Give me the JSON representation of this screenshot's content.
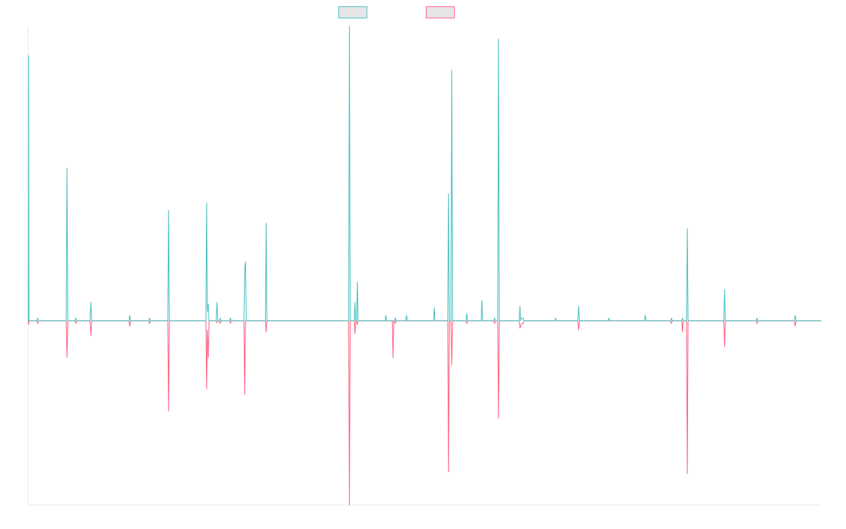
{
  "chart_data": {
    "type": "line",
    "title": "",
    "xlabel": "",
    "ylabel": "",
    "grid": false,
    "legend_position": "top-center",
    "x_range": [
      0,
      1000
    ],
    "ylim": [
      -100,
      160
    ],
    "series": [
      {
        "color": "#4bc0c0",
        "fill": "#e6e6e6",
        "points": [
          [
            0,
            0
          ],
          [
            0.5,
            144
          ],
          [
            1,
            0
          ],
          [
            11,
            0
          ],
          [
            12,
            1.5
          ],
          [
            13,
            0
          ],
          [
            48,
            0
          ],
          [
            49,
            83
          ],
          [
            50,
            0
          ],
          [
            59,
            0
          ],
          [
            60,
            1.5
          ],
          [
            61,
            0
          ],
          [
            78,
            0
          ],
          [
            79,
            10
          ],
          [
            80,
            0
          ],
          [
            127,
            0
          ],
          [
            128,
            3
          ],
          [
            129,
            0
          ],
          [
            152,
            0
          ],
          [
            153,
            1.5
          ],
          [
            154,
            0
          ],
          [
            176,
            0
          ],
          [
            177,
            60
          ],
          [
            178,
            0
          ],
          [
            224,
            0
          ],
          [
            225,
            64
          ],
          [
            226,
            5
          ],
          [
            227,
            9
          ],
          [
            228,
            0
          ],
          [
            237,
            0
          ],
          [
            238,
            10
          ],
          [
            239,
            0
          ],
          [
            241,
            0
          ],
          [
            242,
            1.5
          ],
          [
            243,
            0
          ],
          [
            254,
            0
          ],
          [
            255,
            1.5
          ],
          [
            256,
            0
          ],
          [
            272,
            0
          ],
          [
            273,
            29
          ],
          [
            274,
            32
          ],
          [
            275,
            0
          ],
          [
            299,
            0
          ],
          [
            300,
            53
          ],
          [
            301,
            0
          ],
          [
            404,
            0
          ],
          [
            405,
            160
          ],
          [
            406,
            0
          ],
          [
            411,
            0
          ],
          [
            412,
            10
          ],
          [
            413,
            0
          ],
          [
            414,
            0
          ],
          [
            415,
            21
          ],
          [
            416,
            0
          ],
          [
            450,
            0
          ],
          [
            451,
            3
          ],
          [
            452,
            0
          ],
          [
            462,
            0
          ],
          [
            463,
            1.5
          ],
          [
            464,
            0
          ],
          [
            476,
            0
          ],
          [
            477,
            3
          ],
          [
            478,
            0
          ],
          [
            511,
            0
          ],
          [
            512,
            7
          ],
          [
            513,
            0
          ],
          [
            529,
            0
          ],
          [
            530,
            69
          ],
          [
            531,
            0
          ],
          [
            533,
            0
          ],
          [
            534,
            136
          ],
          [
            535,
            0
          ],
          [
            552,
            0
          ],
          [
            553,
            4
          ],
          [
            554,
            0
          ],
          [
            571,
            0
          ],
          [
            572,
            11
          ],
          [
            573,
            0
          ],
          [
            587,
            0
          ],
          [
            588,
            1.5
          ],
          [
            589,
            0
          ],
          [
            592,
            0
          ],
          [
            593,
            153
          ],
          [
            594,
            0
          ],
          [
            619,
            0
          ],
          [
            620,
            8
          ],
          [
            621,
            0
          ],
          [
            622,
            1.5
          ],
          [
            624,
            1.5
          ],
          [
            625,
            0
          ],
          [
            664,
            0
          ],
          [
            665,
            1.5
          ],
          [
            666,
            0
          ],
          [
            693,
            0
          ],
          [
            694,
            8
          ],
          [
            695,
            0
          ],
          [
            731,
            0
          ],
          [
            732,
            1.5
          ],
          [
            733,
            0
          ],
          [
            777,
            0
          ],
          [
            778,
            3
          ],
          [
            779,
            0
          ],
          [
            810,
            0
          ],
          [
            811,
            1.5
          ],
          [
            812,
            0
          ],
          [
            824,
            0
          ],
          [
            825,
            1.5
          ],
          [
            826,
            0
          ],
          [
            830,
            0
          ],
          [
            831,
            50
          ],
          [
            832,
            0
          ],
          [
            877,
            0
          ],
          [
            878,
            17
          ],
          [
            879,
            0
          ],
          [
            918,
            0
          ],
          [
            919,
            1.5
          ],
          [
            920,
            0
          ],
          [
            966,
            0
          ],
          [
            967,
            3
          ],
          [
            968,
            0
          ],
          [
            1000,
            0
          ]
        ]
      },
      {
        "color": "#ff6384",
        "fill": "#e6e6e6",
        "points": [
          [
            0,
            0
          ],
          [
            0.5,
            -2
          ],
          [
            1,
            0
          ],
          [
            11,
            0
          ],
          [
            12,
            -1.5
          ],
          [
            13,
            0
          ],
          [
            48,
            0
          ],
          [
            49,
            -20
          ],
          [
            50,
            0
          ],
          [
            59,
            0
          ],
          [
            60,
            -1.5
          ],
          [
            61,
            0
          ],
          [
            78,
            0
          ],
          [
            79,
            -8
          ],
          [
            80,
            0
          ],
          [
            127,
            0
          ],
          [
            128,
            -3
          ],
          [
            129,
            0
          ],
          [
            152,
            0
          ],
          [
            153,
            -1.5
          ],
          [
            154,
            0
          ],
          [
            176,
            0
          ],
          [
            177,
            -49
          ],
          [
            178,
            0
          ],
          [
            224,
            0
          ],
          [
            225,
            -37
          ],
          [
            226,
            -5
          ],
          [
            227,
            -20
          ],
          [
            228,
            0
          ],
          [
            237,
            0
          ],
          [
            238,
            -1
          ],
          [
            239,
            0
          ],
          [
            241,
            0
          ],
          [
            242,
            -1.5
          ],
          [
            243,
            0
          ],
          [
            254,
            0
          ],
          [
            255,
            -1.5
          ],
          [
            256,
            0
          ],
          [
            272,
            0
          ],
          [
            273,
            -40
          ],
          [
            274,
            0
          ],
          [
            299,
            0
          ],
          [
            300,
            -6
          ],
          [
            301,
            0
          ],
          [
            404,
            0
          ],
          [
            405,
            -100
          ],
          [
            406,
            0
          ],
          [
            411,
            0
          ],
          [
            412,
            -7
          ],
          [
            413,
            0
          ],
          [
            414,
            0
          ],
          [
            415,
            -2
          ],
          [
            416,
            0
          ],
          [
            459,
            0
          ],
          [
            460,
            -20
          ],
          [
            461,
            0
          ],
          [
            462,
            0
          ],
          [
            463,
            -1.5
          ],
          [
            464,
            0
          ],
          [
            552,
            0
          ],
          [
            553,
            -1.5
          ],
          [
            554,
            0
          ],
          [
            529,
            0
          ],
          [
            530,
            -82
          ],
          [
            531,
            0
          ],
          [
            533,
            0
          ],
          [
            534,
            -24
          ],
          [
            535,
            0
          ],
          [
            587,
            0
          ],
          [
            588,
            -1.5
          ],
          [
            589,
            0
          ],
          [
            592,
            0
          ],
          [
            593,
            -53
          ],
          [
            594,
            0
          ],
          [
            619,
            0
          ],
          [
            620,
            -4
          ],
          [
            621,
            -3
          ],
          [
            622,
            -1.5
          ],
          [
            624,
            -1.5
          ],
          [
            625,
            0
          ],
          [
            693,
            0
          ],
          [
            694,
            -5
          ],
          [
            695,
            0
          ],
          [
            810,
            0
          ],
          [
            811,
            -1.5
          ],
          [
            812,
            0
          ],
          [
            824,
            0
          ],
          [
            825,
            -6
          ],
          [
            826,
            0
          ],
          [
            830,
            0
          ],
          [
            831,
            -83
          ],
          [
            832,
            0
          ],
          [
            877,
            0
          ],
          [
            878,
            -14
          ],
          [
            879,
            0
          ],
          [
            918,
            0
          ],
          [
            919,
            -1.5
          ],
          [
            920,
            0
          ],
          [
            966,
            0
          ],
          [
            967,
            -3
          ],
          [
            968,
            0
          ],
          [
            1000,
            0
          ]
        ]
      }
    ]
  }
}
